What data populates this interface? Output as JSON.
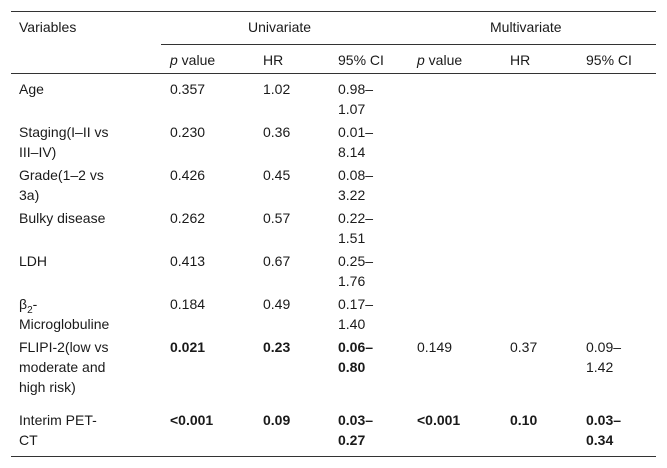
{
  "table": {
    "header": {
      "variables": "Variables",
      "univariate": "Univariate",
      "multivariate": "Multivariate"
    },
    "subheader": {
      "uni_p_italic": "p",
      "uni_p_rest": " value",
      "uni_hr": "HR",
      "uni_ci": "95% CI",
      "multi_p_italic": "p",
      "multi_p_rest": " value",
      "multi_hr": "HR",
      "multi_ci": "95% CI"
    },
    "rows": [
      {
        "v1": "Age",
        "v2": "",
        "p": "0.357",
        "hr": "1.02",
        "ci1": "0.98–",
        "ci2": "1.07",
        "mp": "",
        "mhr": "",
        "mci1": "",
        "mci2": ""
      },
      {
        "v1": "Staging(I–II vs",
        "v2": "III–IV)",
        "p": "0.230",
        "hr": "0.36",
        "ci1": "0.01–",
        "ci2": "8.14",
        "mp": "",
        "mhr": "",
        "mci1": "",
        "mci2": ""
      },
      {
        "v1": "Grade(1–2 vs",
        "v2": "3a)",
        "p": "0.426",
        "hr": "0.45",
        "ci1": "0.08–",
        "ci2": "3.22",
        "mp": "",
        "mhr": "",
        "mci1": "",
        "mci2": ""
      },
      {
        "v1": "Bulky disease",
        "v2": "",
        "p": "0.262",
        "hr": "0.57",
        "ci1": "0.22–",
        "ci2": "1.51",
        "mp": "",
        "mhr": "",
        "mci1": "",
        "mci2": ""
      },
      {
        "v1": "LDH",
        "v2": "",
        "p": "0.413",
        "hr": "0.67",
        "ci1": "0.25–",
        "ci2": "1.76",
        "mp": "",
        "mhr": "",
        "mci1": "",
        "mci2": ""
      },
      {
        "v1a": "β",
        "v1sub": "2",
        "v1b": "-",
        "v2": "Microglobuline",
        "p": "0.184",
        "hr": "0.49",
        "ci1": "0.17–",
        "ci2": "1.40",
        "mp": "",
        "mhr": "",
        "mci1": "",
        "mci2": ""
      },
      {
        "v1": "FLIPI-2(low vs",
        "v2": "moderate and",
        "v3": "high risk)",
        "p": "0.021",
        "hr": "0.23",
        "ci1": "0.06–",
        "ci2": "0.80",
        "mp": "0.149",
        "mhr": "0.37",
        "mci1": "0.09–",
        "mci2": "1.42"
      },
      {
        "v1": "Interim PET-",
        "v2": "CT",
        "p": "<0.001",
        "hr": "0.09",
        "ci1": "0.03–",
        "ci2": "0.27",
        "mp": "<0.001",
        "mhr": "0.10",
        "mci1": "0.03–",
        "mci2": "0.34"
      }
    ]
  }
}
